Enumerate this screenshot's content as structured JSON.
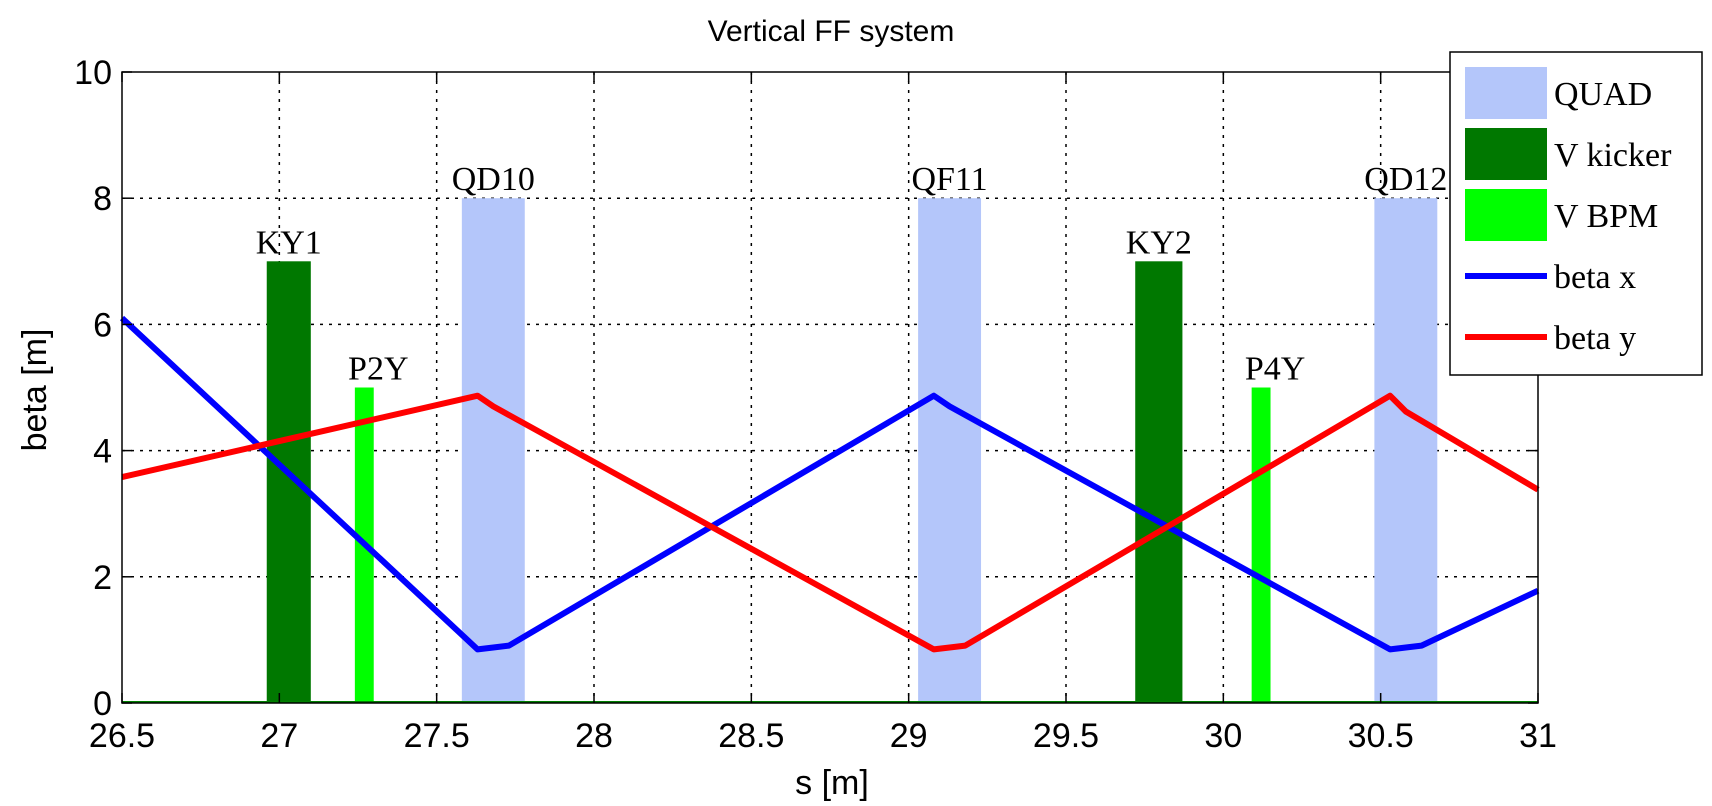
{
  "chart_data": {
    "type": "line",
    "title": "Vertical FF system",
    "xlabel": "s [m]",
    "ylabel": "beta [m]",
    "xlim": [
      26.5,
      31
    ],
    "ylim": [
      0,
      10
    ],
    "xticks": [
      26.5,
      27,
      27.5,
      28,
      28.5,
      29,
      29.5,
      30,
      30.5,
      31
    ],
    "xtick_labels": [
      "26.5",
      "27",
      "27.5",
      "28",
      "28.5",
      "29",
      "29.5",
      "30",
      "30.5",
      "31"
    ],
    "yticks": [
      0,
      2,
      4,
      6,
      8,
      10
    ],
    "ytick_labels": [
      "0",
      "2",
      "4",
      "6",
      "8",
      "10"
    ],
    "grid": true,
    "legend_position": "top-right-outside",
    "elements": [
      {
        "label": "KY1",
        "kind": "V kicker",
        "x_start": 26.96,
        "x_end": 27.1,
        "height": 7
      },
      {
        "label": "P2Y",
        "kind": "V BPM",
        "x_start": 27.24,
        "x_end": 27.3,
        "height": 5
      },
      {
        "label": "QD10",
        "kind": "QUAD",
        "x_start": 27.58,
        "x_end": 27.78,
        "height": 8
      },
      {
        "label": "QF11",
        "kind": "QUAD",
        "x_start": 29.03,
        "x_end": 29.23,
        "height": 8
      },
      {
        "label": "KY2",
        "kind": "V kicker",
        "x_start": 29.72,
        "x_end": 29.87,
        "height": 7
      },
      {
        "label": "P4Y",
        "kind": "V BPM",
        "x_start": 30.09,
        "x_end": 30.15,
        "height": 5
      },
      {
        "label": "QD12",
        "kind": "QUAD",
        "x_start": 30.48,
        "x_end": 30.68,
        "height": 8
      }
    ],
    "series": [
      {
        "name": "beta x",
        "color": "#0000ff",
        "points": [
          [
            26.5,
            6.1
          ],
          [
            27.63,
            0.85
          ],
          [
            27.68,
            0.88
          ],
          [
            27.73,
            0.91
          ],
          [
            29.08,
            4.87
          ],
          [
            29.13,
            4.7
          ],
          [
            30.53,
            0.85
          ],
          [
            30.58,
            0.88
          ],
          [
            30.63,
            0.91
          ],
          [
            31.0,
            1.78
          ]
        ]
      },
      {
        "name": "beta y",
        "color": "#ff0000",
        "points": [
          [
            26.5,
            3.58
          ],
          [
            27.63,
            4.87
          ],
          [
            27.68,
            4.7
          ],
          [
            29.08,
            0.85
          ],
          [
            29.13,
            0.88
          ],
          [
            29.18,
            0.91
          ],
          [
            30.53,
            4.87
          ],
          [
            30.58,
            4.62
          ],
          [
            31.0,
            3.38
          ]
        ]
      }
    ],
    "legend": [
      {
        "label": "QUAD",
        "type": "patch",
        "color": "#b4c6fa"
      },
      {
        "label": "V kicker",
        "type": "patch",
        "color": "#007800"
      },
      {
        "label": "V BPM",
        "type": "patch",
        "color": "#00ff00"
      },
      {
        "label": "beta x",
        "type": "line",
        "color": "#0000ff"
      },
      {
        "label": "beta y",
        "type": "line",
        "color": "#ff0000"
      }
    ],
    "baseline_color": "#008000"
  }
}
